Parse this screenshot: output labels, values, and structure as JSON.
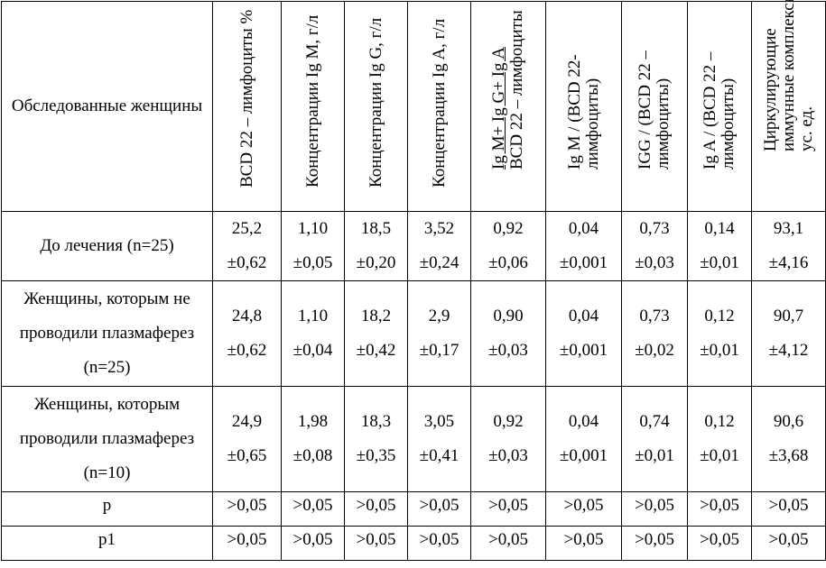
{
  "header": {
    "group_label": "Обследованные женщины",
    "columns": [
      {
        "lines": [
          "BCD 22 – лимфоциты %"
        ]
      },
      {
        "lines": [
          "Концентрации Ig M, г/л"
        ]
      },
      {
        "lines": [
          "Концентрации Ig G, г/л"
        ]
      },
      {
        "lines": [
          "Концентрации Ig A, г/л"
        ]
      },
      {
        "line1_underlined": "Ig M+ Ig G+ Ig A",
        "line2": "BCD 22 – лимфоциты"
      },
      {
        "lines": [
          "Ig M / (BCD 22-",
          "лимфоциты)"
        ]
      },
      {
        "lines": [
          "IGG / (BCD 22 –",
          "лимфоциты)"
        ]
      },
      {
        "lines": [
          "Ig A / (BCD 22 –",
          "лимфоциты)"
        ]
      },
      {
        "lines": [
          "Циркулирующие",
          "иммунные комплексы,",
          "ус. ед."
        ]
      }
    ]
  },
  "rows": [
    {
      "label": "До лечения (n=25)",
      "means": [
        "25,2",
        "1,10",
        "18,5",
        "3,52",
        "0,92",
        "0,04",
        "0,73",
        "0,14",
        "93,1"
      ],
      "errors": [
        "±0,62",
        "±0,05",
        "±0,20",
        "±0,24",
        "±0,06",
        "±0,001",
        "±0,03",
        "±0,01",
        "±4,16"
      ]
    },
    {
      "label": "Женщины, которым не проводили плазмаферез (n=25)",
      "means": [
        "24,8",
        "1,10",
        "18,2",
        "2,9",
        "0,90",
        "0,04",
        "0,73",
        "0,12",
        "90,7"
      ],
      "errors": [
        "±0,62",
        "±0,04",
        "±0,42",
        "±0,17",
        "±0,03",
        "±0,001",
        "±0,02",
        "±0,01",
        "±4,12"
      ]
    },
    {
      "label": "Женщины, которым проводили плазмаферез (n=10)",
      "means": [
        "24,9",
        "1,98",
        "18,3",
        "3,05",
        "0,92",
        "0,04",
        "0,74",
        "0,12",
        "90,6"
      ],
      "errors": [
        "±0,65",
        "±0,08",
        "±0,35",
        "±0,41",
        "±0,03",
        "±0,001",
        "±0,01",
        "±0,01",
        "±3,68"
      ]
    }
  ],
  "p_rows": [
    {
      "label": "p",
      "values": [
        ">0,05",
        ">0,05",
        ">0,05",
        ">0,05",
        ">0,05",
        ">0,05",
        ">0,05",
        ">0,05",
        ">0,05"
      ]
    },
    {
      "label": "p1",
      "values": [
        ">0,05",
        ">0,05",
        ">0,05",
        ">0,05",
        ">0,05",
        ">0,05",
        ">0,05",
        ">0,05",
        ">0,05"
      ]
    }
  ]
}
